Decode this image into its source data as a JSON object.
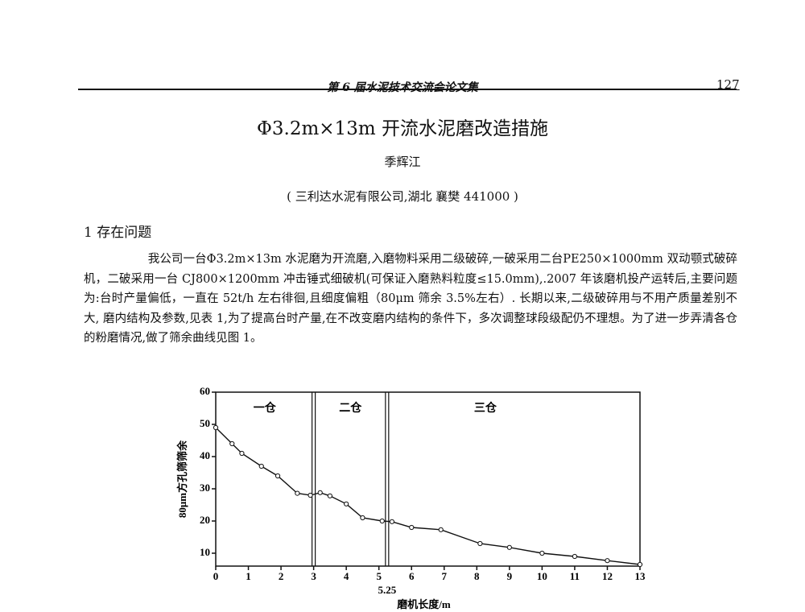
{
  "header": {
    "journal": "第 6 届水泥技术交流会论文集",
    "page_number": "127"
  },
  "title": "Φ3.2m×13m 开流水泥磨改造措施",
  "author": "季辉江",
  "affiliation": "( 三利达水泥有限公司,湖北  襄樊    441000 )",
  "section": {
    "heading": "1  存在问题",
    "paragraph": "我公司一台Φ3.2m×13m 水泥磨为开流磨,入磨物料采用二级破碎,一破采用二台PE250×1000mm 双动颚式破碎机，二破采用一台 CJ800×1200mm 冲击锤式细破机(可保证入磨熟料粒度≤15.0mm),.2007 年该磨机投产运转后,主要问题为:台时产量偏低，一直在 52t/h 左右徘徊,且细度偏粗（80μm 筛余 3.5%左右）. 长期以来,二级破碎用与不用产质量差别不大, 磨内结构及参数,见表 1,为了提高台时产量,在不改变磨内结构的条件下，多次调整球段级配仍不理想。为了进一步弄清各仓的粉磨情况,做了筛余曲线见图 1。"
  },
  "chart_data": {
    "type": "line",
    "x_label": "磨机长度/m",
    "y_label": "80μm方孔筛筛余",
    "x": [
      0,
      0.5,
      0.8,
      1.4,
      1.9,
      2.5,
      2.9,
      3.2,
      3.5,
      4.0,
      4.5,
      5.1,
      5.4,
      6.0,
      6.9,
      8.1,
      9.0,
      10.0,
      11.0,
      12.0,
      13.0
    ],
    "series": [
      {
        "color": "#111111",
        "values": [
          49,
          44,
          41,
          37,
          34,
          28.6,
          28,
          28.8,
          27.8,
          25.3,
          21,
          20,
          19.8,
          18,
          17.3,
          13,
          11.8,
          10,
          9,
          7.7,
          6.5
        ]
      }
    ],
    "xlim": [
      0,
      13
    ],
    "ylim": [
      6,
      60
    ],
    "xticks": [
      0,
      1,
      2,
      3,
      4,
      5,
      6,
      7,
      8,
      9,
      10,
      11,
      12,
      13
    ],
    "yticks": [
      10,
      20,
      30,
      40,
      50,
      60
    ],
    "dividers": [
      3,
      5.25
    ],
    "compartments": [
      "一仓",
      "二仓",
      "三仓"
    ]
  }
}
